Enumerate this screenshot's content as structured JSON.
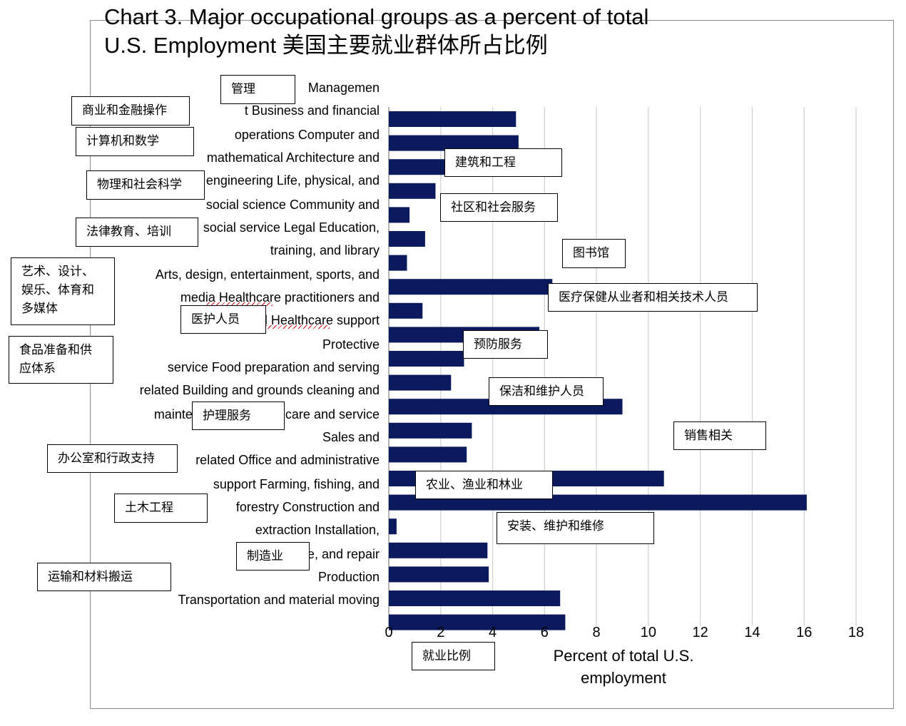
{
  "title_lines": [
    "Chart 3. Major occupational groups as a percent of total",
    "U.S. Employment 美国主要就业群体所占比例"
  ],
  "y_label_lines": [
    "Managemen",
    "t Business and financial",
    "operations Computer and",
    "mathematical Architecture and",
    "engineering Life, physical, and",
    "social science Community and",
    "social service Legal Education,",
    "training, and library",
    "Arts, design, entertainment, sports, and",
    "media Healthcare practitioners and",
    "technical Healthcare support",
    "Protective",
    "service Food preparation and serving",
    "related Building and grounds cleaning and",
    "maintenance Personal care and service",
    "Sales and",
    "related Office and administrative",
    "support Farming, fishing, and",
    "forestry Construction and",
    "extraction Installation,",
    "maintenance, and repair",
    "Production",
    "Transportation and material moving"
  ],
  "annotations": {
    "management": "管理",
    "business": "商业和金融操作",
    "computer": "计算机和数学",
    "architecture": "建筑和工程",
    "science": "物理和社会科学",
    "community": "社区和社会服务",
    "legal_education": "法律教育、培训",
    "library": "图书馆",
    "arts": "艺术、设计、娱乐、体育和多媒体",
    "healthcare_practitioners": "医疗保健从业者和相关技术人员",
    "healthcare_support": "医护人员",
    "protective": "预防服务",
    "food": "食品准备和供应体系",
    "cleaning": "保洁和维护人员",
    "personal_care": "护理服务",
    "sales": "销售相关",
    "office": "办公室和行政支持",
    "farming": "农业、渔业和林业",
    "construction": "土木工程",
    "installation": "安装、维护和维修",
    "production": "制造业",
    "transportation": "运输和材料搬运",
    "xlabel_cn": "就业比例"
  },
  "chart_data": {
    "type": "bar",
    "orientation": "horizontal",
    "title": "Chart 3. Major occupational groups as a percent of total U.S. Employment 美国主要就业群体所占比例",
    "xlabel": "Percent of total U.S. employment",
    "xlim": [
      0,
      18
    ],
    "xticks": [
      0,
      2,
      4,
      6,
      8,
      10,
      12,
      14,
      16,
      18
    ],
    "grid": "vertical",
    "bar_color": "#0b1a5c",
    "values": [
      4.9,
      5.0,
      2.6,
      1.8,
      0.8,
      1.4,
      0.7,
      6.3,
      1.3,
      5.8,
      2.9,
      2.4,
      9.0,
      3.2,
      3.0,
      10.6,
      16.1,
      0.3,
      3.8,
      3.85,
      6.6,
      6.8
    ]
  }
}
